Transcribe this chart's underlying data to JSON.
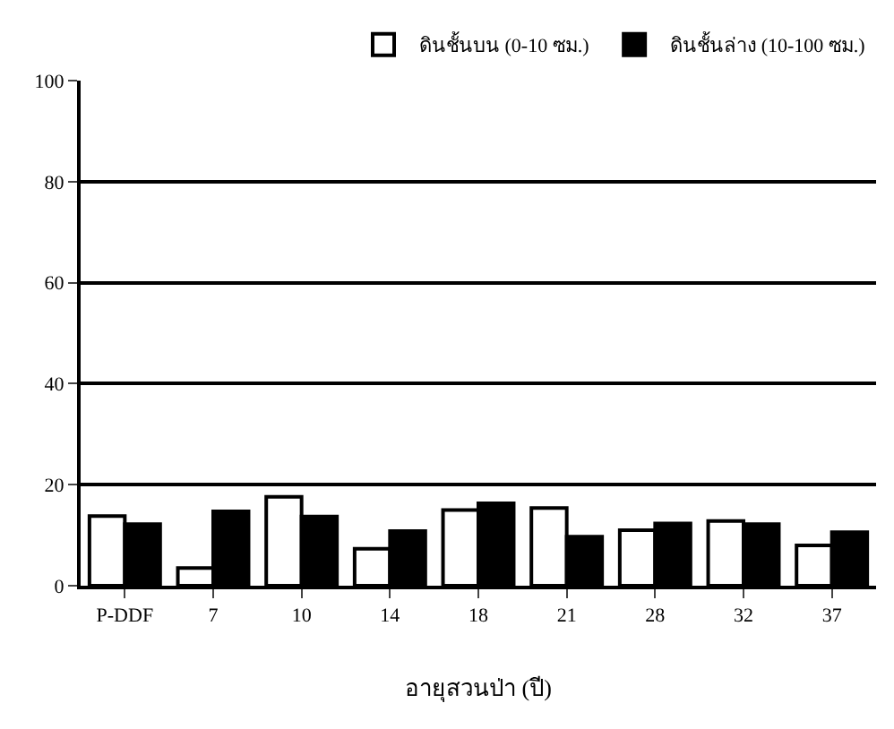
{
  "chart_data": {
    "type": "bar",
    "xlabel": "อายุสวนป่า (ปี)",
    "categories": [
      "P-DDF",
      "7",
      "10",
      "14",
      "18",
      "21",
      "28",
      "32",
      "37"
    ],
    "series": [
      {
        "name": "ดินชั้นบน (0-10 ซม.)",
        "color": "#ffffff",
        "values": [
          13.8,
          3.5,
          17.6,
          7.3,
          15.0,
          15.4,
          11.0,
          12.8,
          8.0
        ]
      },
      {
        "name": "ดินชั้นล่าง (10-100 ซม.)",
        "color": "#000000",
        "values": [
          12.2,
          14.7,
          13.7,
          10.8,
          16.3,
          9.7,
          12.3,
          12.2,
          10.6
        ]
      }
    ],
    "ylim": [
      0,
      100
    ],
    "yticks": [
      0,
      20,
      40,
      60,
      80,
      100
    ],
    "grid": "y",
    "legend": "top right"
  }
}
